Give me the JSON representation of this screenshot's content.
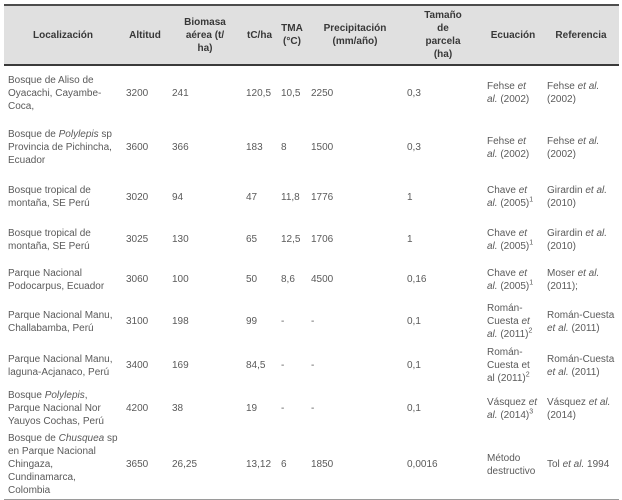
{
  "table": {
    "headers": [
      "Localización",
      "Altitud",
      "Biomasa\naérea (t/\nha)",
      "tC/ha",
      "TMA\n(°C)",
      "Precipitación\n(mm/año)",
      "Tamaño\nde\nparcela\n(ha)",
      "Ecuación",
      "Referencia"
    ],
    "rows": [
      {
        "localizacion": [
          "Bosque de Aliso de Oyacachi, Cayambe-Coca,"
        ],
        "altitud": "3200",
        "biomasa": "241",
        "tc_ha": "120,5",
        "tma": "10,5",
        "precipitacion": "2250",
        "parcela": "0,3",
        "ecuacion": [
          "Fehse ",
          {
            "i": "et al."
          },
          " (2002)"
        ],
        "referencia": [
          "Fehse ",
          {
            "i": "et al."
          },
          " (2002)"
        ]
      },
      {
        "localizacion": [
          "Bosque de ",
          {
            "i": "Polylepis"
          },
          " sp Provincia de Pichincha, Ecuador"
        ],
        "altitud": "3600",
        "biomasa": "366",
        "tc_ha": "183",
        "tma": "8",
        "precipitacion": "1500",
        "parcela": "0,3",
        "ecuacion": [
          "Fehse ",
          {
            "i": "et al."
          },
          " (2002)"
        ],
        "referencia": [
          "Fehse ",
          {
            "i": "et al."
          },
          " (2002)"
        ]
      },
      {
        "localizacion": [
          "Bosque tropical de montaña, SE Perú"
        ],
        "altitud": "3020",
        "biomasa": "94",
        "tc_ha": "47",
        "tma": "11,8",
        "precipitacion": "1776",
        "parcela": "1",
        "ecuacion": [
          "Chave ",
          {
            "i": "et al."
          },
          " (2005)",
          {
            "sup": "1"
          }
        ],
        "referencia": [
          "Girardin ",
          {
            "i": "et al."
          },
          " (2010)"
        ]
      },
      {
        "localizacion": [
          "Bosque tropical de montaña, SE Perú"
        ],
        "altitud": "3025",
        "biomasa": "130",
        "tc_ha": "65",
        "tma": "12,5",
        "precipitacion": "1706",
        "parcela": "1",
        "ecuacion": [
          "Chave ",
          {
            "i": "et al."
          },
          " (2005)",
          {
            "sup": "1"
          }
        ],
        "referencia": [
          "Girardin ",
          {
            "i": "et al."
          },
          " (2010)"
        ]
      },
      {
        "localizacion": [
          "Parque Nacional Podocarpus, Ecuador"
        ],
        "altitud": "3060",
        "biomasa": "100",
        "tc_ha": "50",
        "tma": "8,6",
        "precipitacion": "4500",
        "parcela": "0,16",
        "ecuacion": [
          "Chave ",
          {
            "i": "et al."
          },
          " (2005)",
          {
            "sup": "1"
          }
        ],
        "referencia": [
          "Moser ",
          {
            "i": "et al."
          },
          " (2011);"
        ]
      },
      {
        "localizacion": [
          "Parque Nacional Manu, Challabamba, Perú"
        ],
        "altitud": "3100",
        "biomasa": "198",
        "tc_ha": "99",
        "tma": "-",
        "precipitacion": "-",
        "parcela": "0,1",
        "ecuacion": [
          "Román-Cuesta ",
          {
            "i": "et al."
          },
          " (2011)",
          {
            "sup": "2"
          }
        ],
        "referencia": [
          "Román-Cuesta ",
          {
            "i": "et al."
          },
          " (2011)"
        ]
      },
      {
        "localizacion": [
          "Parque Nacional Manu, laguna-Acjanaco, Perú"
        ],
        "altitud": "3400",
        "biomasa": "169",
        "tc_ha": "84,5",
        "tma": "-",
        "precipitacion": "-",
        "parcela": "0,1",
        "ecuacion": [
          "Román-Cuesta et al (2011)",
          {
            "sup": "2"
          }
        ],
        "referencia": [
          "Román-Cuesta ",
          {
            "i": "et al."
          },
          " (2011)"
        ]
      },
      {
        "localizacion": [
          "Bosque ",
          {
            "i": "Polylepis"
          },
          ", Parque Nacional Nor Yauyos Cochas, Perú"
        ],
        "altitud": "4200",
        "biomasa": "38",
        "tc_ha": "19",
        "tma": "-",
        "precipitacion": "-",
        "parcela": "0,1",
        "ecuacion": [
          "Vásquez ",
          {
            "i": "et al."
          },
          " (2014)",
          {
            "sup": "3"
          }
        ],
        "referencia": [
          "Vásquez ",
          {
            "i": "et al."
          },
          " (2014)"
        ]
      },
      {
        "localizacion": [
          "Bosque de ",
          {
            "i": "Chusquea"
          },
          " sp en Parque Nacional Chingaza, Cundinamarca, Colombia"
        ],
        "altitud": "3650",
        "biomasa": "26,25",
        "tc_ha": "13,12",
        "tma": "6",
        "precipitacion": "1850",
        "parcela": "0,0016",
        "ecuacion": [
          "Método destructivo"
        ],
        "referencia": [
          "Tol ",
          {
            "i": "et al."
          },
          " 1994"
        ]
      }
    ]
  }
}
